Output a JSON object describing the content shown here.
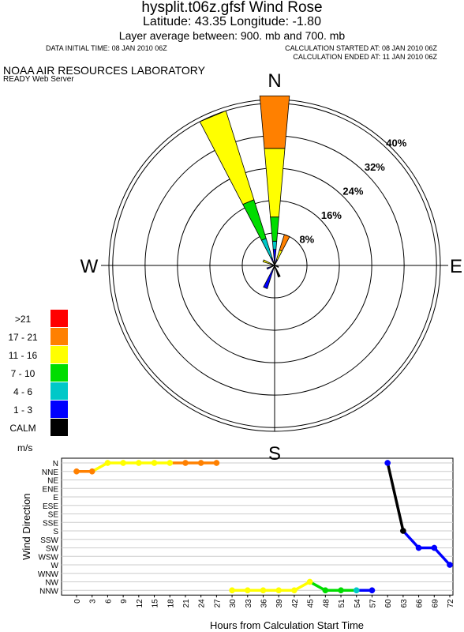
{
  "header": {
    "title": "hysplit.t06z.gfsf Wind Rose",
    "latlon": "Latitude:  43.35 Longitude:   -1.80",
    "layer": "Layer average between:  900. mb  and  700. mb",
    "data_initial": "DATA INITIAL TIME: 08 JAN 2010 06Z",
    "calc_started": "CALCULATION STARTED AT: 08 JAN 2010 06Z",
    "calc_ended": "CALCULATION ENDED AT: 11 JAN 2010 06Z",
    "lab": "NOAA AIR RESOURCES LABORATORY",
    "server": "READY Web Server"
  },
  "legend": {
    "units": "m/s",
    "items": [
      {
        "label": ">21",
        "color": "#ff0000"
      },
      {
        "label": "17 - 21",
        "color": "#ff8000"
      },
      {
        "label": "11 - 16",
        "color": "#ffff00"
      },
      {
        "label": "7 - 10",
        "color": "#00dd00"
      },
      {
        "label": "4 - 6",
        "color": "#00c8c8"
      },
      {
        "label": "1 - 3",
        "color": "#0000ff"
      },
      {
        "label": "CALM",
        "color": "#000000"
      }
    ]
  },
  "chart_data": [
    {
      "type": "wind_rose",
      "title": "hysplit.t06z.gfsf Wind Rose",
      "compass": [
        "N",
        "E",
        "S",
        "W"
      ],
      "ring_labels": [
        "8%",
        "16%",
        "24%",
        "32%",
        "40%"
      ],
      "ring_values": [
        8,
        16,
        24,
        32,
        40
      ],
      "speed_bins": [
        ">21",
        "17 - 21",
        "11 - 16",
        "7 - 10",
        "4 - 6",
        "1 - 3",
        "CALM"
      ],
      "petals": [
        {
          "dir": 0,
          "segments": [
            {
              "bin": "1 - 3",
              "color": "#0000ff",
              "to": 4
            },
            {
              "bin": "4 - 6",
              "color": "#00c8c8",
              "to": 6
            },
            {
              "bin": "7 - 10",
              "color": "#00dd00",
              "to": 12
            },
            {
              "bin": "11 - 16",
              "color": "#ffff00",
              "to": 29
            },
            {
              "bin": "17 - 21",
              "color": "#ff8000",
              "to": 42
            }
          ]
        },
        {
          "dir": 337.5,
          "segments": [
            {
              "bin": "1 - 3",
              "color": "#0000ff",
              "to": 2
            },
            {
              "bin": "4 - 6",
              "color": "#00c8c8",
              "to": 7
            },
            {
              "bin": "7 - 10",
              "color": "#00dd00",
              "to": 17
            },
            {
              "bin": "11 - 16",
              "color": "#ffff00",
              "to": 40
            }
          ]
        },
        {
          "dir": 22.5,
          "segments": [
            {
              "bin": "1 - 3",
              "color": "#0000ff",
              "to": 1.5
            },
            {
              "bin": "11 - 16",
              "color": "#ffff00",
              "to": 4
            },
            {
              "bin": "17 - 21",
              "color": "#ff8000",
              "to": 8
            }
          ]
        },
        {
          "dir": 292.5,
          "segments": [
            {
              "bin": "11 - 16",
              "color": "#ffff00",
              "to": 3
            }
          ]
        },
        {
          "dir": 247.5,
          "segments": [
            {
              "bin": "1 - 3",
              "color": "#0000ff",
              "to": 2
            }
          ]
        },
        {
          "dir": 202.5,
          "segments": [
            {
              "bin": "1 - 3",
              "color": "#0000ff",
              "to": 6
            }
          ]
        },
        {
          "dir": 157.5,
          "segments": [
            {
              "bin": "CALM",
              "color": "#000000",
              "to": 3
            }
          ]
        },
        {
          "dir": 112.5,
          "segments": [
            {
              "bin": "CALM",
              "color": "#000000",
              "to": 1
            }
          ]
        }
      ]
    },
    {
      "type": "line",
      "xlabel": "Hours from Calculation Start Time",
      "ylabel": "Wind Direction",
      "x_ticks": [
        "0",
        "3",
        "6",
        "9",
        "12",
        "15",
        "18",
        "21",
        "24",
        "27",
        "30",
        "33",
        "36",
        "39",
        "42",
        "45",
        "48",
        "51",
        "54",
        "57",
        "60",
        "63",
        "66",
        "69",
        "72"
      ],
      "y_ticks": [
        "N",
        "NNE",
        "NE",
        "ENE",
        "E",
        "ESE",
        "SE",
        "SSE",
        "S",
        "SSW",
        "SW",
        "WSW",
        "W",
        "WNW",
        "NW",
        "NNW"
      ],
      "xlim": [
        0,
        72
      ],
      "segments": [
        {
          "color": "#ff8000",
          "points": [
            [
              0,
              1
            ],
            [
              3,
              1
            ]
          ]
        },
        {
          "color": "#ffff00",
          "points": [
            [
              3,
              1
            ],
            [
              6,
              0
            ],
            [
              9,
              0
            ],
            [
              12,
              0
            ],
            [
              15,
              0
            ],
            [
              18,
              0
            ]
          ]
        },
        {
          "color": "#ff8000",
          "points": [
            [
              18,
              0
            ],
            [
              21,
              0
            ],
            [
              24,
              0
            ],
            [
              27,
              0
            ]
          ]
        },
        {
          "color": "#ffff00",
          "points": [
            [
              30,
              15
            ],
            [
              33,
              15
            ],
            [
              36,
              15
            ],
            [
              39,
              15
            ],
            [
              42,
              15
            ],
            [
              45,
              14
            ]
          ]
        },
        {
          "color": "#00dd00",
          "points": [
            [
              45,
              14
            ],
            [
              48,
              15
            ],
            [
              51,
              15
            ],
            [
              54,
              15
            ]
          ]
        },
        {
          "color": "#0000ff",
          "points": [
            [
              54,
              15
            ],
            [
              57,
              15
            ]
          ]
        },
        {
          "color": "#000000",
          "points": [
            [
              60,
              0
            ],
            [
              63,
              8
            ]
          ]
        },
        {
          "color": "#0000ff",
          "points": [
            [
              63,
              8
            ],
            [
              66,
              10
            ],
            [
              69,
              10
            ],
            [
              72,
              12
            ]
          ]
        }
      ],
      "markers": [
        {
          "x": 0,
          "y": 1,
          "color": "#ff8000"
        },
        {
          "x": 3,
          "y": 1,
          "color": "#ff8000"
        },
        {
          "x": 6,
          "y": 0,
          "color": "#ffff00"
        },
        {
          "x": 9,
          "y": 0,
          "color": "#ffff00"
        },
        {
          "x": 12,
          "y": 0,
          "color": "#ffff00"
        },
        {
          "x": 15,
          "y": 0,
          "color": "#ffff00"
        },
        {
          "x": 18,
          "y": 0,
          "color": "#ffff00"
        },
        {
          "x": 21,
          "y": 0,
          "color": "#ff8000"
        },
        {
          "x": 24,
          "y": 0,
          "color": "#ff8000"
        },
        {
          "x": 27,
          "y": 0,
          "color": "#ff8000"
        },
        {
          "x": 30,
          "y": 15,
          "color": "#ffff00"
        },
        {
          "x": 33,
          "y": 15,
          "color": "#ffff00"
        },
        {
          "x": 36,
          "y": 15,
          "color": "#ffff00"
        },
        {
          "x": 39,
          "y": 15,
          "color": "#ffff00"
        },
        {
          "x": 42,
          "y": 15,
          "color": "#ffff00"
        },
        {
          "x": 45,
          "y": 14,
          "color": "#ffff00"
        },
        {
          "x": 48,
          "y": 15,
          "color": "#00dd00"
        },
        {
          "x": 51,
          "y": 15,
          "color": "#00dd00"
        },
        {
          "x": 54,
          "y": 15,
          "color": "#00c8c8"
        },
        {
          "x": 57,
          "y": 15,
          "color": "#0000ff"
        },
        {
          "x": 60,
          "y": 0,
          "color": "#0000ff"
        },
        {
          "x": 63,
          "y": 8,
          "color": "#000000"
        },
        {
          "x": 66,
          "y": 10,
          "color": "#0000ff"
        },
        {
          "x": 69,
          "y": 10,
          "color": "#0000ff"
        },
        {
          "x": 72,
          "y": 12,
          "color": "#0000ff"
        }
      ]
    }
  ]
}
